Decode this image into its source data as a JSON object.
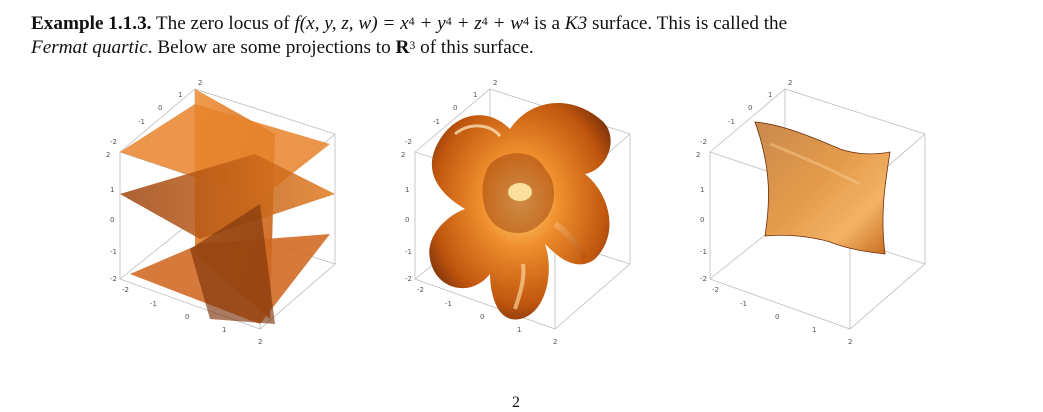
{
  "paragraph": {
    "label": "Example 1.1.3.",
    "text_1": " The zero locus of ",
    "math_f": "f(x, y, z, w) = x",
    "exp": "4",
    "math_plus_y": " + y",
    "math_plus_z": " + z",
    "math_plus_w": " + w",
    "text_2": " is a ",
    "k3": "K3",
    "text_3": " surface. This is called the",
    "fermat": "Fermat quartic",
    "text_4": ". Below are some projections to ",
    "R": "R",
    "R_exp": "3",
    "text_5": " of this surface."
  },
  "figures": [
    {
      "ticks": [
        "2",
        "1",
        "0",
        "-1",
        "-2",
        "2",
        "1",
        "0",
        "-1",
        "-2",
        "-2",
        "-1",
        "0",
        "1",
        "2"
      ]
    },
    {
      "ticks": [
        "2",
        "1",
        "0",
        "-1",
        "-2",
        "2",
        "1",
        "0",
        "-1",
        "-2",
        "-2",
        "-1",
        "0",
        "1",
        "2"
      ]
    },
    {
      "ticks": [
        "2",
        "1",
        "0",
        "-1",
        "-2",
        "2",
        "1",
        "0",
        "-1",
        "-2",
        "-2",
        "-1",
        "0",
        "1",
        "2"
      ]
    }
  ],
  "page_number": "2",
  "colors": {
    "surface": "#e07a1f",
    "surface_dark": "#8a3c0c",
    "surface_light": "#f5b067",
    "box": "#b8b8b8"
  }
}
